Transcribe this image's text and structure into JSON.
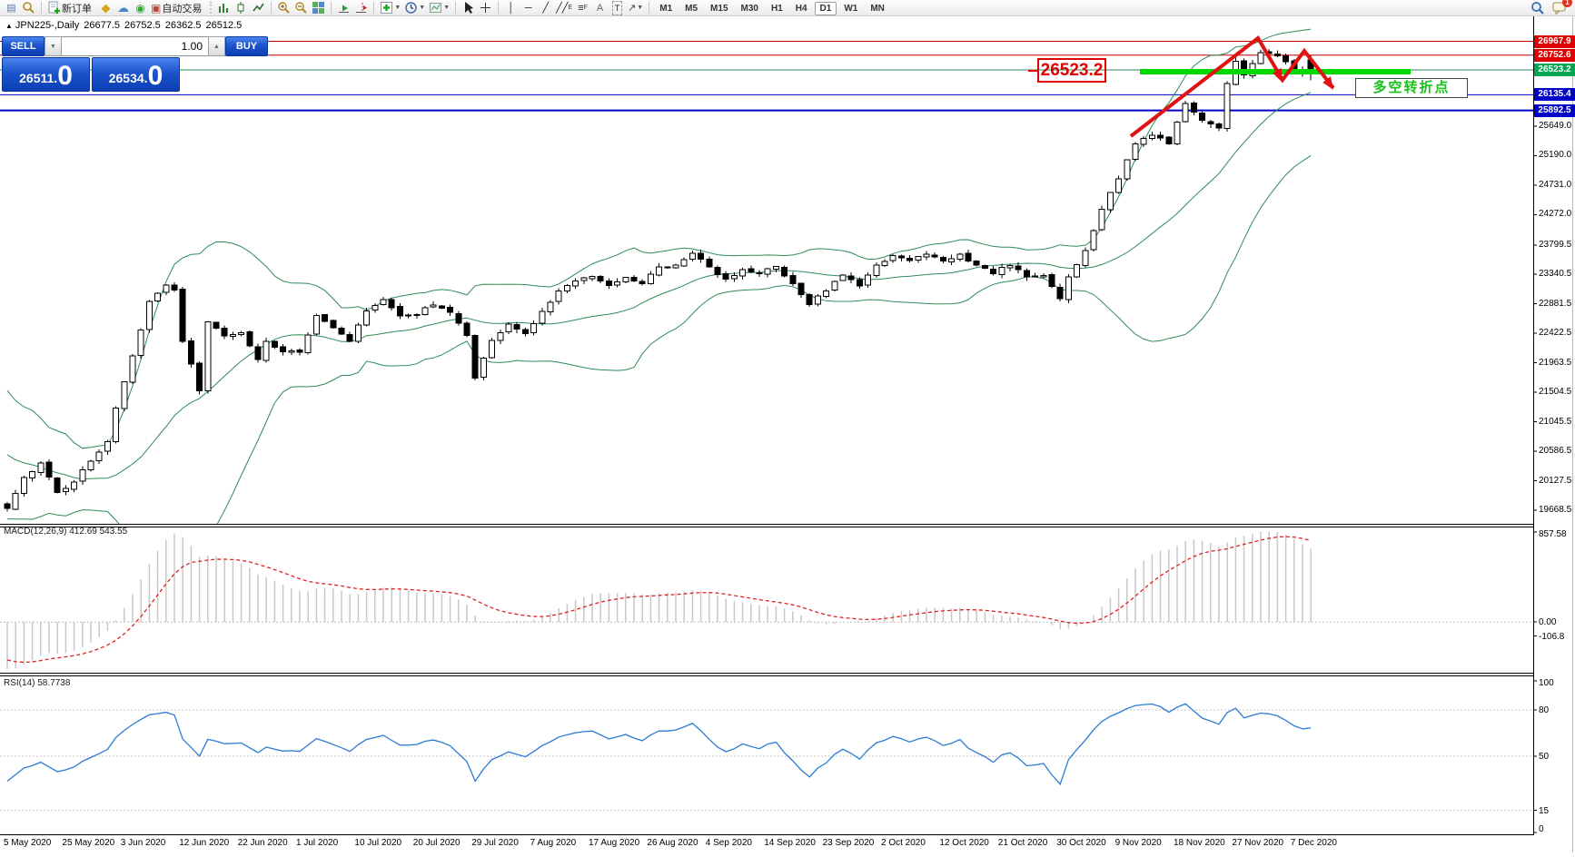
{
  "toolbar": {
    "new_order_label": "新订单",
    "auto_trading_label": "自动交易",
    "timeframes": [
      "M1",
      "M5",
      "M15",
      "M30",
      "H1",
      "H4",
      "D1",
      "W1",
      "MN"
    ],
    "active_timeframe": "D1",
    "notification_count": "1",
    "tool_glyphs": {
      "vline": "│",
      "hline": "─",
      "trendline": "╱",
      "channel": "╱╱",
      "channel_sub": "E",
      "fibo": "≡",
      "fibo_sub": "F",
      "text_tool": "A",
      "label_tool": "T",
      "arrows_tool": "↗"
    }
  },
  "chart": {
    "title": "JPN225-,Daily",
    "ohlc_display": {
      "open": "26677.5",
      "high": "26752.5",
      "low": "26362.5",
      "close": "26512.5"
    },
    "trade_panel": {
      "sell_label": "SELL",
      "buy_label": "BUY",
      "volume": "1.00",
      "sell_price": "26511.",
      "sell_price_big": "0",
      "buy_price": "26534.",
      "buy_price_big": "0"
    },
    "levels": [
      {
        "value": 26967.9,
        "label": "26967.9",
        "line_color": "#cc0000",
        "tag_color": "#dd0000",
        "width": 1
      },
      {
        "value": 26752.6,
        "label": "26752.6",
        "line_color": "#cc0000",
        "tag_color": "#dd0000",
        "width": 1
      },
      {
        "value": 26523.2,
        "label": "26523.2",
        "line_color": "#2e8b57",
        "tag_color": "#00a651",
        "width": 1
      },
      {
        "value": 26135.4,
        "label": "26135.4",
        "line_color": "#0000c8",
        "tag_color": "#0000c8",
        "width": 1
      },
      {
        "value": 25892.5,
        "label": "25892.5",
        "line_color": "#0000c8",
        "tag_color": "#0000c8",
        "width": 2
      }
    ],
    "price_ticks": [
      {
        "value": 25649.0,
        "label": "25649.0"
      },
      {
        "value": 25190.0,
        "label": "25190.0"
      },
      {
        "value": 24731.0,
        "label": "24731.0"
      },
      {
        "value": 24272.0,
        "label": "24272.0"
      },
      {
        "value": 23799.5,
        "label": "23799.5"
      },
      {
        "value": 23340.5,
        "label": "23340.5"
      },
      {
        "value": 22881.5,
        "label": "22881.5"
      },
      {
        "value": 22422.5,
        "label": "22422.5"
      },
      {
        "value": 21963.5,
        "label": "21963.5"
      },
      {
        "value": 21504.5,
        "label": "21504.5"
      },
      {
        "value": 21045.5,
        "label": "21045.5"
      },
      {
        "value": 20586.5,
        "label": "20586.5"
      },
      {
        "value": 20127.5,
        "label": "20127.5"
      },
      {
        "value": 19668.5,
        "label": "19668.5"
      }
    ],
    "date_ticks": [
      "5 May 2020",
      "25 May 2020",
      "3 Jun 2020",
      "12 Jun 2020",
      "22 Jun 2020",
      "1 Jul 2020",
      "10 Jul 2020",
      "20 Jul 2020",
      "29 Jul 2020",
      "7 Aug 2020",
      "17 Aug 2020",
      "26 Aug 2020",
      "4 Sep 2020",
      "14 Sep 2020",
      "23 Sep 2020",
      "2 Oct 2020",
      "12 Oct 2020",
      "21 Oct 2020",
      "30 Oct 2020",
      "9 Nov 2020",
      "18 Nov 2020",
      "27 Nov 2020",
      "7 Dec 2020"
    ],
    "annotations": {
      "level_callout": "26523.2",
      "turning_point": "多空转折点"
    },
    "price_path_anchors": [
      [
        0,
        19700
      ],
      [
        2,
        20180
      ],
      [
        4,
        20390
      ],
      [
        6,
        19940
      ],
      [
        8,
        20100
      ],
      [
        10,
        20450
      ],
      [
        12,
        20740
      ],
      [
        13,
        21270
      ],
      [
        15,
        22060
      ],
      [
        17,
        22900
      ],
      [
        19,
        23180
      ],
      [
        20,
        23090
      ],
      [
        21,
        22310
      ],
      [
        23,
        21540
      ],
      [
        24,
        22580
      ],
      [
        26,
        22400
      ],
      [
        28,
        22440
      ],
      [
        30,
        22000
      ],
      [
        31,
        22290
      ],
      [
        33,
        22150
      ],
      [
        35,
        22120
      ],
      [
        37,
        22710
      ],
      [
        39,
        22530
      ],
      [
        41,
        22300
      ],
      [
        43,
        22790
      ],
      [
        45,
        22940
      ],
      [
        47,
        22700
      ],
      [
        49,
        22720
      ],
      [
        51,
        22880
      ],
      [
        53,
        22750
      ],
      [
        55,
        22400
      ],
      [
        56,
        21710
      ],
      [
        58,
        22330
      ],
      [
        60,
        22570
      ],
      [
        62,
        22420
      ],
      [
        64,
        22750
      ],
      [
        66,
        23100
      ],
      [
        68,
        23250
      ],
      [
        70,
        23290
      ],
      [
        72,
        23170
      ],
      [
        74,
        23300
      ],
      [
        76,
        23210
      ],
      [
        78,
        23460
      ],
      [
        80,
        23470
      ],
      [
        82,
        23650
      ],
      [
        84,
        23470
      ],
      [
        86,
        23250
      ],
      [
        88,
        23410
      ],
      [
        90,
        23360
      ],
      [
        92,
        23470
      ],
      [
        94,
        23200
      ],
      [
        96,
        22880
      ],
      [
        98,
        23090
      ],
      [
        100,
        23350
      ],
      [
        102,
        23180
      ],
      [
        104,
        23490
      ],
      [
        106,
        23620
      ],
      [
        108,
        23560
      ],
      [
        110,
        23670
      ],
      [
        112,
        23560
      ],
      [
        114,
        23640
      ],
      [
        116,
        23490
      ],
      [
        118,
        23370
      ],
      [
        120,
        23500
      ],
      [
        122,
        23290
      ],
      [
        124,
        23330
      ],
      [
        126,
        22980
      ],
      [
        127,
        23300
      ],
      [
        129,
        23700
      ],
      [
        131,
        24350
      ],
      [
        133,
        24840
      ],
      [
        135,
        25390
      ],
      [
        137,
        25520
      ],
      [
        139,
        25380
      ],
      [
        141,
        26010
      ],
      [
        143,
        25730
      ],
      [
        145,
        25630
      ],
      [
        146,
        26300
      ],
      [
        147,
        26640
      ],
      [
        148,
        26430
      ],
      [
        150,
        26800
      ],
      [
        152,
        26750
      ],
      [
        154,
        26550
      ],
      [
        155,
        26470
      ],
      [
        156,
        26512
      ]
    ],
    "last_candle": {
      "open": 26677.5,
      "high": 26752.5,
      "low": 26362.5,
      "close": 26512.5
    },
    "bollinger_color": "#2e8b57",
    "support_bar_color": "#00d800",
    "trend_arrow_color": "#e01212"
  },
  "macd": {
    "label": "MACD(12,26,9) 412.69 543.55",
    "ticks": [
      {
        "value": 857.58,
        "label": "857.58"
      },
      {
        "value": 0,
        "label": "0.00"
      },
      {
        "value": -106.8,
        "label": "-106.8"
      }
    ],
    "histogram_color": "#c8c8c8",
    "signal_color": "#e02020"
  },
  "rsi": {
    "label": "RSI(14) 58.7738",
    "ticks": [
      {
        "value": 100,
        "label": "100"
      },
      {
        "value": 80,
        "label": "80"
      },
      {
        "value": 50,
        "label": "50"
      },
      {
        "value": 15,
        "label": "15"
      },
      {
        "value": 0,
        "label": "0"
      }
    ],
    "levels": [
      80,
      50,
      15
    ],
    "line_color": "#2b7cd3"
  }
}
